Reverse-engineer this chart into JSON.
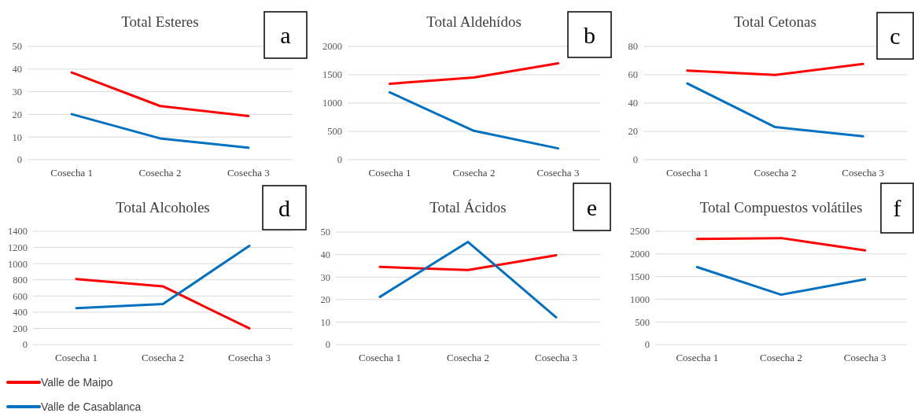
{
  "chart_data": [
    {
      "type": "line",
      "title": "Total Esteres",
      "categories": [
        "Cosecha 1",
        "Cosecha 2",
        "Cosecha 3"
      ],
      "series": [
        {
          "color": "#ff0000",
          "values": [
            38.5,
            23.7,
            19.3
          ]
        },
        {
          "color": "#0070c0",
          "values": [
            20.1,
            9.4,
            5.3
          ]
        }
      ],
      "ylim": [
        0,
        50
      ],
      "yticks": [
        0,
        10,
        20,
        30,
        40,
        50
      ],
      "grid": "y",
      "annotations": [
        "a"
      ]
    },
    {
      "type": "line",
      "title": "Total Aldehídos",
      "categories": [
        "Cosecha 1",
        "Cosecha 2",
        "Cosecha 3"
      ],
      "series": [
        {
          "color": "#ff0000",
          "values": [
            1340,
            1450,
            1700
          ]
        },
        {
          "color": "#0070c0",
          "values": [
            1190,
            510,
            200
          ]
        }
      ],
      "ylim": [
        0,
        2000
      ],
      "yticks": [
        0,
        500,
        1000,
        1500,
        2000
      ],
      "grid": "y",
      "annotations": [
        "b"
      ]
    },
    {
      "type": "line",
      "title": "Total Cetonas",
      "categories": [
        "Cosecha 1",
        "Cosecha 2",
        "Cosecha 3"
      ],
      "series": [
        {
          "color": "#ff0000",
          "values": [
            62.9,
            59.8,
            67.6
          ]
        },
        {
          "color": "#0070c0",
          "values": [
            53.8,
            23,
            16.5
          ]
        }
      ],
      "ylim": [
        0,
        80
      ],
      "yticks": [
        0,
        20,
        40,
        60,
        80
      ],
      "grid": "y",
      "annotations": [
        "c"
      ]
    },
    {
      "type": "line",
      "title": "Total Alcoholes",
      "categories": [
        "Cosecha 1",
        "Cosecha 2",
        "Cosecha 3"
      ],
      "series": [
        {
          "name": "Valle de Maipo",
          "color": "#ff0000",
          "values": [
            810,
            720,
            200
          ]
        },
        {
          "name": "Valle de Casablanca",
          "color": "#0070c0",
          "values": [
            450,
            500,
            1220
          ]
        }
      ],
      "ylim": [
        0,
        1400
      ],
      "yticks": [
        0,
        200,
        400,
        600,
        800,
        1000,
        1200,
        1400
      ],
      "grid": "y",
      "legend": "bottom",
      "annotations": [
        "d"
      ]
    },
    {
      "type": "line",
      "title": "Total Ácidos",
      "categories": [
        "Cosecha 1",
        "Cosecha 2",
        "Cosecha 3"
      ],
      "series": [
        {
          "color": "#ff0000",
          "values": [
            34.5,
            33.1,
            39.7
          ]
        },
        {
          "color": "#0070c0",
          "values": [
            21.2,
            45.6,
            12.1
          ]
        }
      ],
      "ylim": [
        0,
        50
      ],
      "yticks": [
        0,
        10,
        20,
        30,
        40,
        50
      ],
      "grid": "y",
      "annotations": [
        "e"
      ]
    },
    {
      "type": "line",
      "title": "Total Compuestos volátiles",
      "categories": [
        "Cosecha 1",
        "Cosecha 2",
        "Cosecha 3"
      ],
      "series": [
        {
          "color": "#ff0000",
          "values": [
            2330,
            2350,
            2080
          ]
        },
        {
          "color": "#0070c0",
          "values": [
            1710,
            1100,
            1440
          ]
        }
      ],
      "ylim": [
        0,
        2500
      ],
      "yticks": [
        0,
        500,
        1000,
        1500,
        2000,
        2500
      ],
      "grid": "y",
      "annotations": [
        "f"
      ]
    }
  ]
}
